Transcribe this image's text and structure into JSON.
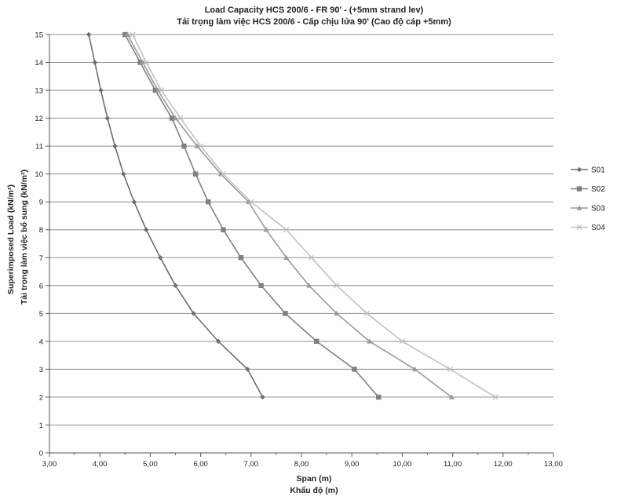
{
  "chart_data": {
    "type": "line",
    "title": "Load Capacity HCS 200/6 - FR 90' - (+5mm strand lev)",
    "subtitle": "Tải trọng làm việc HCS 200/6 - Cấp chịu lửa 90' (Cao độ cáp +5mm)",
    "xlabel": "Span (m)",
    "xlabel_vi": "Khẩu độ (m)",
    "ylabel": "Superimposed Load (kN/m²)",
    "ylabel_vi": "Tải trọng làm việc bổ sung (kN/m²)",
    "xlim": [
      3,
      13
    ],
    "ylim": [
      0,
      15
    ],
    "x_ticks": [
      "3,00",
      "4,00",
      "5,00",
      "6,00",
      "7,00",
      "8,00",
      "9,00",
      "10,00",
      "11,00",
      "12,00",
      "13,00"
    ],
    "y_ticks": [
      "0",
      "1",
      "2",
      "3",
      "4",
      "5",
      "6",
      "7",
      "8",
      "9",
      "10",
      "11",
      "12",
      "13",
      "14",
      "15"
    ],
    "grid": "horizontal",
    "legend_position": "right",
    "series": [
      {
        "name": "S01",
        "color": "#6e6e6e",
        "marker": "diamond",
        "points": [
          [
            3.78,
            15
          ],
          [
            3.9,
            14
          ],
          [
            4.02,
            13
          ],
          [
            4.15,
            12
          ],
          [
            4.3,
            11
          ],
          [
            4.47,
            10
          ],
          [
            4.68,
            9
          ],
          [
            4.92,
            8
          ],
          [
            5.2,
            7
          ],
          [
            5.5,
            6
          ],
          [
            5.86,
            5
          ],
          [
            6.35,
            4
          ],
          [
            6.93,
            3
          ],
          [
            7.23,
            2
          ]
        ]
      },
      {
        "name": "S02",
        "color": "#808080",
        "marker": "square",
        "points": [
          [
            4.5,
            15
          ],
          [
            4.8,
            14
          ],
          [
            5.1,
            13
          ],
          [
            5.43,
            12
          ],
          [
            5.67,
            11
          ],
          [
            5.9,
            10
          ],
          [
            6.15,
            9
          ],
          [
            6.45,
            8
          ],
          [
            6.8,
            7
          ],
          [
            7.2,
            6
          ],
          [
            7.68,
            5
          ],
          [
            8.3,
            4
          ],
          [
            9.05,
            3
          ],
          [
            9.53,
            2
          ]
        ]
      },
      {
        "name": "S03",
        "color": "#9a9a9a",
        "marker": "triangle",
        "points": [
          [
            4.55,
            15
          ],
          [
            4.85,
            14
          ],
          [
            5.15,
            13
          ],
          [
            5.5,
            12
          ],
          [
            5.93,
            11
          ],
          [
            6.4,
            10
          ],
          [
            6.95,
            9
          ],
          [
            7.3,
            8
          ],
          [
            7.7,
            7
          ],
          [
            8.15,
            6
          ],
          [
            8.7,
            5
          ],
          [
            9.35,
            4
          ],
          [
            10.25,
            3
          ],
          [
            10.98,
            2
          ]
        ]
      },
      {
        "name": "S04",
        "color": "#c2c2c2",
        "marker": "x",
        "points": [
          [
            4.65,
            15
          ],
          [
            4.92,
            14
          ],
          [
            5.22,
            13
          ],
          [
            5.6,
            12
          ],
          [
            6.0,
            11
          ],
          [
            6.45,
            10
          ],
          [
            7.0,
            9
          ],
          [
            7.7,
            8
          ],
          [
            8.2,
            7
          ],
          [
            8.7,
            6
          ],
          [
            9.3,
            5
          ],
          [
            10.0,
            4
          ],
          [
            10.95,
            3
          ],
          [
            11.85,
            2
          ]
        ]
      }
    ]
  }
}
